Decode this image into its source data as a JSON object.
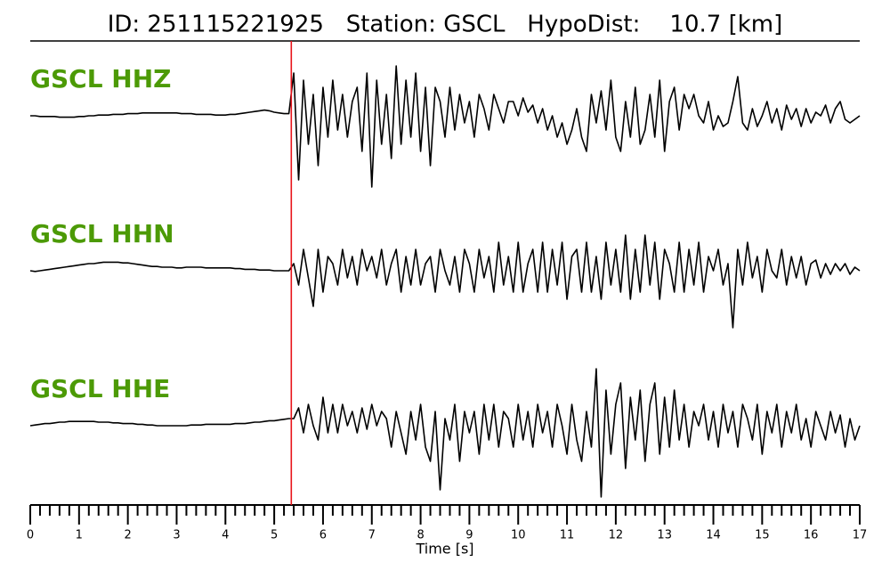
{
  "chart_data": {
    "type": "line",
    "title": "ID: 251115221925   Station: GSCL   HypoDist:    10.7 [km]",
    "xlabel": "Time [s]",
    "xlim": [
      0,
      17
    ],
    "ylim": [
      -1,
      1
    ],
    "xticks": [
      0,
      1,
      2,
      3,
      4,
      5,
      6,
      7,
      8,
      9,
      10,
      11,
      12,
      13,
      14,
      15,
      16,
      17
    ],
    "xminorticks": [
      0.2,
      0.4,
      0.6,
      0.8,
      1.2,
      1.4,
      1.6,
      1.8,
      2.2,
      2.4,
      2.6,
      2.8,
      3.2,
      3.4,
      3.6,
      3.8,
      4.2,
      4.4,
      4.6,
      4.8,
      5.2,
      5.4,
      5.6,
      5.8,
      6.2,
      6.4,
      6.6,
      6.8,
      7.2,
      7.4,
      7.6,
      7.8,
      8.2,
      8.4,
      8.6,
      8.8,
      9.2,
      9.4,
      9.6,
      9.8,
      10.2,
      10.4,
      10.6,
      10.8,
      11.2,
      11.4,
      11.6,
      11.8,
      12.2,
      12.4,
      12.6,
      12.8,
      13.2,
      13.4,
      13.6,
      13.8,
      14.2,
      14.4,
      14.6,
      14.8,
      15.2,
      15.4,
      15.6,
      15.8,
      16.2,
      16.4,
      16.6,
      16.8
    ],
    "pick": 5.35,
    "pick_color": "#e8141b",
    "label_color": "#4c9a06",
    "x": [
      0,
      0.1,
      0.2,
      0.3,
      0.4,
      0.5,
      0.6,
      0.7,
      0.8,
      0.9,
      1,
      1.1,
      1.2,
      1.3,
      1.4,
      1.5,
      1.6,
      1.7,
      1.8,
      1.9,
      2,
      2.1,
      2.2,
      2.3,
      2.4,
      2.5,
      2.6,
      2.7,
      2.8,
      2.9,
      3,
      3.1,
      3.2,
      3.3,
      3.4,
      3.5,
      3.6,
      3.7,
      3.8,
      3.9,
      4,
      4.1,
      4.2,
      4.3,
      4.4,
      4.5,
      4.6,
      4.7,
      4.8,
      4.9,
      5,
      5.1,
      5.2,
      5.3,
      5.4,
      5.5,
      5.6,
      5.7,
      5.8,
      5.9,
      6,
      6.1,
      6.2,
      6.3,
      6.4,
      6.5,
      6.6,
      6.7,
      6.8,
      6.9,
      7,
      7.1,
      7.2,
      7.3,
      7.4,
      7.5,
      7.6,
      7.7,
      7.8,
      7.9,
      8,
      8.1,
      8.2,
      8.3,
      8.4,
      8.5,
      8.6,
      8.7,
      8.8,
      8.9,
      9,
      9.1,
      9.2,
      9.3,
      9.4,
      9.5,
      9.6,
      9.7,
      9.8,
      9.9,
      10,
      10.1,
      10.2,
      10.3,
      10.4,
      10.5,
      10.6,
      10.7,
      10.8,
      10.9,
      11,
      11.1,
      11.2,
      11.3,
      11.4,
      11.5,
      11.6,
      11.7,
      11.8,
      11.9,
      12,
      12.1,
      12.2,
      12.3,
      12.4,
      12.5,
      12.6,
      12.7,
      12.8,
      12.9,
      13,
      13.1,
      13.2,
      13.3,
      13.4,
      13.5,
      13.6,
      13.7,
      13.8,
      13.9,
      14,
      14.1,
      14.2,
      14.3,
      14.4,
      14.5,
      14.6,
      14.7,
      14.8,
      14.9,
      15,
      15.1,
      15.2,
      15.3,
      15.4,
      15.5,
      15.6,
      15.7,
      15.8,
      15.9,
      16,
      16.1,
      16.2,
      16.3,
      16.4,
      16.5,
      16.6,
      16.7,
      16.8,
      16.9,
      17
    ],
    "series": [
      {
        "name": "GSCL HHZ",
        "color": "#000000",
        "values": [
          0,
          0,
          -0.01,
          -0.01,
          -0.01,
          -0.01,
          -0.02,
          -0.02,
          -0.02,
          -0.02,
          -0.01,
          -0.01,
          0,
          0,
          0.01,
          0.01,
          0.01,
          0.02,
          0.02,
          0.02,
          0.03,
          0.03,
          0.03,
          0.04,
          0.04,
          0.04,
          0.04,
          0.04,
          0.04,
          0.04,
          0.04,
          0.03,
          0.03,
          0.03,
          0.02,
          0.02,
          0.02,
          0.02,
          0.01,
          0.01,
          0.01,
          0.02,
          0.02,
          0.03,
          0.04,
          0.05,
          0.06,
          0.07,
          0.08,
          0.07,
          0.05,
          0.04,
          0.03,
          0.03,
          0.6,
          -0.9,
          0.5,
          -0.4,
          0.3,
          -0.7,
          0.4,
          -0.3,
          0.5,
          -0.2,
          0.3,
          -0.3,
          0.2,
          0.4,
          -0.5,
          0.6,
          -1.0,
          0.5,
          -0.4,
          0.3,
          -0.6,
          0.7,
          -0.4,
          0.5,
          -0.3,
          0.6,
          -0.5,
          0.4,
          -0.7,
          0.4,
          0.2,
          -0.3,
          0.4,
          -0.2,
          0.3,
          -0.1,
          0.2,
          -0.3,
          0.3,
          0.1,
          -0.2,
          0.3,
          0.1,
          -0.1,
          0.2,
          0.2,
          0,
          0.25,
          0.05,
          0.15,
          -0.1,
          0.1,
          -0.2,
          0,
          -0.3,
          -0.1,
          -0.4,
          -0.2,
          0.1,
          -0.3,
          -0.5,
          0.3,
          -0.1,
          0.35,
          -0.2,
          0.5,
          -0.3,
          -0.5,
          0.2,
          -0.3,
          0.4,
          -0.4,
          -0.2,
          0.3,
          -0.3,
          0.5,
          -0.5,
          0.2,
          0.4,
          -0.2,
          0.3,
          0.1,
          0.3,
          0,
          -0.1,
          0.2,
          -0.2,
          0,
          -0.15,
          -0.1,
          0.2,
          0.55,
          -0.1,
          -0.2,
          0.1,
          -0.15,
          0,
          0.2,
          -0.1,
          0.1,
          -0.2,
          0.15,
          -0.05,
          0.1,
          -0.15,
          0.1,
          -0.1,
          0.05,
          0,
          0.15,
          -0.1,
          0.1,
          0.2,
          -0.05,
          -0.1,
          -0.05,
          0
        ]
      },
      {
        "name": "GSCL HHN",
        "color": "#000000",
        "values": [
          0,
          -0.01,
          0,
          0.01,
          0.02,
          0.03,
          0.04,
          0.05,
          0.06,
          0.07,
          0.08,
          0.09,
          0.1,
          0.1,
          0.11,
          0.12,
          0.12,
          0.12,
          0.12,
          0.11,
          0.11,
          0.1,
          0.09,
          0.08,
          0.07,
          0.06,
          0.06,
          0.05,
          0.05,
          0.05,
          0.04,
          0.04,
          0.05,
          0.05,
          0.05,
          0.05,
          0.04,
          0.04,
          0.04,
          0.04,
          0.04,
          0.04,
          0.03,
          0.03,
          0.02,
          0.02,
          0.02,
          0.01,
          0.01,
          0.01,
          0,
          0,
          0,
          0,
          0.1,
          -0.2,
          0.3,
          -0.1,
          -0.5,
          0.3,
          -0.3,
          0.2,
          0.1,
          -0.2,
          0.3,
          -0.1,
          0.2,
          -0.2,
          0.3,
          0,
          0.2,
          -0.1,
          0.3,
          -0.2,
          0.1,
          0.3,
          -0.3,
          0.2,
          -0.2,
          0.3,
          -0.2,
          0.1,
          0.2,
          -0.3,
          0.3,
          0,
          -0.2,
          0.2,
          -0.3,
          0.3,
          0.1,
          -0.3,
          0.3,
          -0.1,
          0.2,
          -0.3,
          0.4,
          -0.2,
          0.2,
          -0.3,
          0.4,
          -0.3,
          0.1,
          0.3,
          -0.3,
          0.4,
          -0.3,
          0.3,
          -0.2,
          0.4,
          -0.4,
          0.2,
          0.3,
          -0.3,
          0.4,
          -0.3,
          0.2,
          -0.4,
          0.4,
          -0.2,
          0.3,
          -0.3,
          0.5,
          -0.4,
          0.3,
          -0.3,
          0.5,
          -0.2,
          0.4,
          -0.4,
          0.3,
          0.1,
          -0.3,
          0.4,
          -0.3,
          0.3,
          -0.2,
          0.4,
          -0.3,
          0.2,
          0,
          0.3,
          -0.2,
          0.1,
          -0.8,
          0.3,
          -0.2,
          0.4,
          -0.1,
          0.2,
          -0.3,
          0.3,
          0,
          -0.1,
          0.3,
          -0.2,
          0.2,
          -0.1,
          0.2,
          -0.2,
          0.1,
          0.15,
          -0.1,
          0.1,
          -0.05,
          0.1,
          0,
          0.1,
          -0.05,
          0.05,
          0
        ]
      },
      {
        "name": "GSCL HHE",
        "color": "#000000",
        "values": [
          0,
          0.01,
          0.02,
          0.03,
          0.03,
          0.04,
          0.05,
          0.05,
          0.06,
          0.06,
          0.06,
          0.06,
          0.06,
          0.06,
          0.05,
          0.05,
          0.05,
          0.04,
          0.04,
          0.03,
          0.03,
          0.03,
          0.02,
          0.02,
          0.01,
          0.01,
          0,
          0,
          0,
          0,
          0,
          0,
          0,
          0.01,
          0.01,
          0.01,
          0.02,
          0.02,
          0.02,
          0.02,
          0.02,
          0.02,
          0.03,
          0.03,
          0.03,
          0.04,
          0.05,
          0.05,
          0.06,
          0.07,
          0.07,
          0.08,
          0.09,
          0.1,
          0.1,
          0.25,
          -0.1,
          0.3,
          0,
          -0.2,
          0.4,
          -0.1,
          0.3,
          -0.1,
          0.3,
          0,
          0.2,
          -0.1,
          0.25,
          -0.05,
          0.3,
          0,
          0.2,
          0.1,
          -0.3,
          0.2,
          -0.1,
          -0.4,
          0.2,
          -0.2,
          0.3,
          -0.3,
          -0.5,
          0.2,
          -0.9,
          0.1,
          -0.2,
          0.3,
          -0.5,
          0.2,
          -0.1,
          0.2,
          -0.4,
          0.3,
          -0.2,
          0.3,
          -0.3,
          0.2,
          0.1,
          -0.3,
          0.3,
          -0.2,
          0.2,
          -0.3,
          0.3,
          -0.1,
          0.2,
          -0.3,
          0.3,
          0,
          -0.4,
          0.3,
          -0.2,
          -0.5,
          0.2,
          -0.3,
          0.8,
          -1.0,
          0.5,
          -0.4,
          0.3,
          0.6,
          -0.6,
          0.4,
          -0.2,
          0.5,
          -0.5,
          0.3,
          0.6,
          -0.4,
          0.4,
          -0.3,
          0.5,
          -0.2,
          0.3,
          -0.3,
          0.2,
          0,
          0.3,
          -0.2,
          0.2,
          -0.3,
          0.3,
          -0.1,
          0.2,
          -0.3,
          0.3,
          0.1,
          -0.2,
          0.3,
          -0.4,
          0.2,
          -0.1,
          0.3,
          -0.3,
          0.2,
          -0.1,
          0.3,
          -0.2,
          0.1,
          -0.3,
          0.2,
          0,
          -0.2,
          0.2,
          -0.1,
          0.15,
          -0.3,
          0.1,
          -0.2,
          0
        ]
      }
    ]
  }
}
